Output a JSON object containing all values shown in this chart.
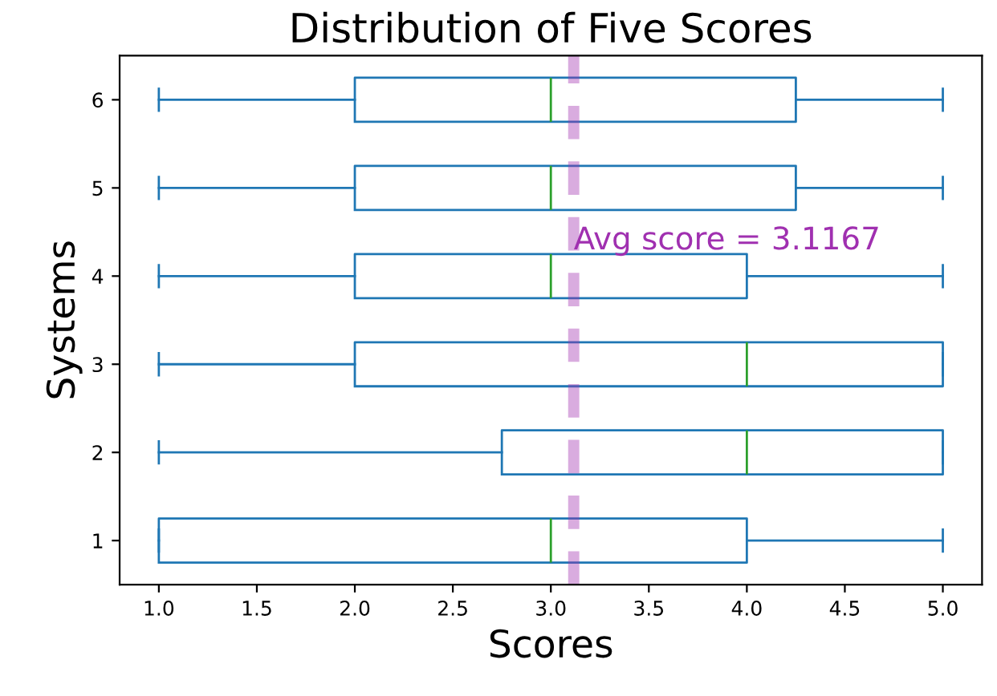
{
  "chart_data": {
    "type": "box",
    "title": "Distribution of Five Scores",
    "xlabel": "Scores",
    "ylabel": "Systems",
    "orientation": "horizontal",
    "categories": [
      "6",
      "5",
      "4",
      "3",
      "2",
      "1"
    ],
    "boxes": [
      {
        "low": 1,
        "q1": 2,
        "median": 3,
        "q3": 4.25,
        "high": 5
      },
      {
        "low": 1,
        "q1": 2,
        "median": 3,
        "q3": 4.25,
        "high": 5
      },
      {
        "low": 1,
        "q1": 2,
        "median": 3,
        "q3": 4,
        "high": 5
      },
      {
        "low": 1,
        "q1": 2,
        "median": 4,
        "q3": 5,
        "high": 5
      },
      {
        "low": 1,
        "q1": 2.75,
        "median": 4,
        "q3": 5,
        "high": 5
      },
      {
        "low": 1,
        "q1": 1,
        "median": 3,
        "q3": 4,
        "high": 5
      }
    ],
    "color": "#1f77b4",
    "xlim": [
      0.8,
      5.2
    ],
    "xticks": [
      {
        "value": 1,
        "label": "1.0"
      },
      {
        "value": 1.5,
        "label": "1.5"
      },
      {
        "value": 2,
        "label": "2.0"
      },
      {
        "value": 2.5,
        "label": "2.5"
      },
      {
        "value": 3,
        "label": "3.0"
      },
      {
        "value": 3.5,
        "label": "3.5"
      },
      {
        "value": 4,
        "label": "4.0"
      },
      {
        "value": 4.5,
        "label": "4.5"
      },
      {
        "value": 5,
        "label": "5.0"
      }
    ],
    "ref_lines": [
      {
        "axis": "x",
        "value": 3.1167,
        "label": "Avg score = 3.1167",
        "color": "#a030b0",
        "line_style": "dashed"
      }
    ],
    "grid": false,
    "legend": false
  }
}
